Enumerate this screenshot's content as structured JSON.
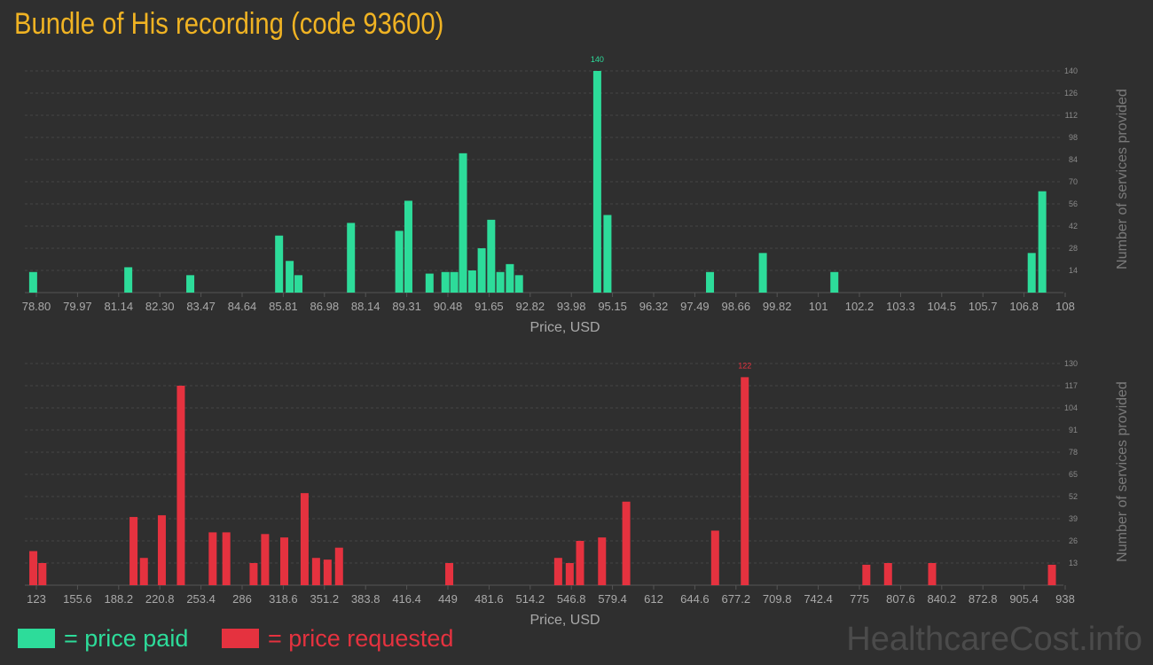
{
  "title": "Bundle of His recording (code 93600)",
  "legend": {
    "paid_label": "= price paid",
    "requested_label": "= price requested",
    "paid_color": "#2ddc9a",
    "requested_color": "#e5323f"
  },
  "watermark": "HealthcareCost.info",
  "chart_data": [
    {
      "type": "bar",
      "name": "price-paid",
      "xlabel": "Price, USD",
      "ylabel": "Number of services provided",
      "color": "#2ddc9a",
      "grid": true,
      "x_ticks": [
        "78.80",
        "79.97",
        "81.14",
        "82.30",
        "83.47",
        "84.64",
        "85.81",
        "86.98",
        "88.14",
        "89.31",
        "90.48",
        "91.65",
        "92.82",
        "93.98",
        "95.15",
        "96.32",
        "97.49",
        "98.66",
        "99.82",
        "101",
        "102.2",
        "103.3",
        "104.5",
        "105.7",
        "106.8",
        "108"
      ],
      "y_ticks": [
        14,
        28,
        42,
        56,
        70,
        84,
        98,
        112,
        126,
        140
      ],
      "ylim": [
        0,
        140
      ],
      "xlim": [
        78.8,
        108
      ],
      "peak_label": "140",
      "bars": [
        {
          "x": 78.86,
          "y": 13
        },
        {
          "x": 81.56,
          "y": 16
        },
        {
          "x": 83.32,
          "y": 11
        },
        {
          "x": 85.84,
          "y": 36
        },
        {
          "x": 86.14,
          "y": 20
        },
        {
          "x": 86.39,
          "y": 11
        },
        {
          "x": 87.88,
          "y": 44
        },
        {
          "x": 89.25,
          "y": 39
        },
        {
          "x": 89.51,
          "y": 58
        },
        {
          "x": 90.11,
          "y": 12
        },
        {
          "x": 90.56,
          "y": 13
        },
        {
          "x": 90.81,
          "y": 13
        },
        {
          "x": 91.06,
          "y": 88
        },
        {
          "x": 91.32,
          "y": 14
        },
        {
          "x": 91.59,
          "y": 28
        },
        {
          "x": 91.86,
          "y": 46
        },
        {
          "x": 92.12,
          "y": 13
        },
        {
          "x": 92.39,
          "y": 18
        },
        {
          "x": 92.65,
          "y": 11
        },
        {
          "x": 94.87,
          "y": 140
        },
        {
          "x": 95.16,
          "y": 49
        },
        {
          "x": 98.07,
          "y": 13
        },
        {
          "x": 99.57,
          "y": 25
        },
        {
          "x": 101.6,
          "y": 13
        },
        {
          "x": 107.2,
          "y": 25
        },
        {
          "x": 107.5,
          "y": 64
        }
      ]
    },
    {
      "type": "bar",
      "name": "price-requested",
      "xlabel": "Price, USD",
      "ylabel": "Number of services provided",
      "color": "#e5323f",
      "grid": true,
      "x_ticks": [
        "123",
        "155.6",
        "188.2",
        "220.8",
        "253.4",
        "286",
        "318.6",
        "351.2",
        "383.8",
        "416.4",
        "449",
        "481.6",
        "514.2",
        "546.8",
        "579.4",
        "612",
        "644.6",
        "677.2",
        "709.8",
        "742.4",
        "775",
        "807.6",
        "840.2",
        "872.8",
        "905.4",
        "938"
      ],
      "y_ticks": [
        13,
        26,
        39,
        52,
        65,
        78,
        91,
        104,
        117,
        130
      ],
      "ylim": [
        0,
        130
      ],
      "xlim": [
        123,
        938
      ],
      "peak_label": "122",
      "bars": [
        {
          "x": 124.8,
          "y": 20
        },
        {
          "x": 132.0,
          "y": 13
        },
        {
          "x": 204.2,
          "y": 40
        },
        {
          "x": 212.4,
          "y": 16
        },
        {
          "x": 226.6,
          "y": 41
        },
        {
          "x": 241.7,
          "y": 117
        },
        {
          "x": 266.9,
          "y": 31
        },
        {
          "x": 277.7,
          "y": 31
        },
        {
          "x": 299.3,
          "y": 13
        },
        {
          "x": 308.4,
          "y": 30
        },
        {
          "x": 323.6,
          "y": 28
        },
        {
          "x": 339.7,
          "y": 54
        },
        {
          "x": 348.8,
          "y": 16
        },
        {
          "x": 357.9,
          "y": 15
        },
        {
          "x": 367.0,
          "y": 22
        },
        {
          "x": 454.3,
          "y": 13
        },
        {
          "x": 540.6,
          "y": 16
        },
        {
          "x": 549.7,
          "y": 13
        },
        {
          "x": 557.9,
          "y": 26
        },
        {
          "x": 575.3,
          "y": 28
        },
        {
          "x": 594.5,
          "y": 49
        },
        {
          "x": 664.9,
          "y": 32
        },
        {
          "x": 688.4,
          "y": 122
        },
        {
          "x": 784.7,
          "y": 12
        },
        {
          "x": 801.9,
          "y": 13
        },
        {
          "x": 836.8,
          "y": 13
        },
        {
          "x": 931.7,
          "y": 12
        }
      ]
    }
  ]
}
